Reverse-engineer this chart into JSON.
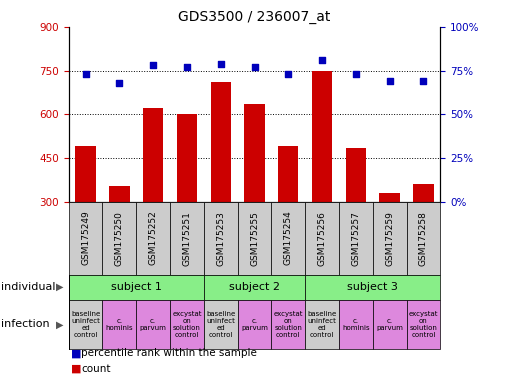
{
  "title": "GDS3500 / 236007_at",
  "samples": [
    "GSM175249",
    "GSM175250",
    "GSM175252",
    "GSM175251",
    "GSM175253",
    "GSM175255",
    "GSM175254",
    "GSM175256",
    "GSM175257",
    "GSM175259",
    "GSM175258"
  ],
  "counts": [
    490,
    355,
    620,
    600,
    710,
    635,
    490,
    750,
    485,
    330,
    360
  ],
  "percentile_ranks": [
    73,
    68,
    78,
    77,
    79,
    77,
    73,
    81,
    73,
    69,
    69
  ],
  "ylim_left": [
    300,
    900
  ],
  "ylim_right": [
    0,
    100
  ],
  "yticks_left": [
    300,
    450,
    600,
    750,
    900
  ],
  "yticks_right": [
    0,
    25,
    50,
    75,
    100
  ],
  "ytick_labels_right": [
    "0%",
    "25%",
    "50%",
    "75%",
    "100%"
  ],
  "hlines": [
    450,
    600,
    750
  ],
  "bar_color": "#cc0000",
  "dot_color": "#0000bb",
  "bar_bottom": 300,
  "subjects": [
    {
      "label": "subject 1",
      "start": 0,
      "end": 3
    },
    {
      "label": "subject 2",
      "start": 4,
      "end": 6
    },
    {
      "label": "subject 3",
      "start": 7,
      "end": 10
    }
  ],
  "infections": [
    {
      "label": "baseline\nuninfect\ned\ncontrol",
      "color": "#cccccc"
    },
    {
      "label": "c.\nhominis",
      "color": "#dd88dd"
    },
    {
      "label": "c.\nparvum",
      "color": "#dd88dd"
    },
    {
      "label": "excystat\non\nsolution\ncontrol",
      "color": "#dd88dd"
    },
    {
      "label": "baseline\nuninfect\ned\ncontrol",
      "color": "#cccccc"
    },
    {
      "label": "c.\nparvum",
      "color": "#dd88dd"
    },
    {
      "label": "excystat\non\nsolution\ncontrol",
      "color": "#dd88dd"
    },
    {
      "label": "baseline\nuninfect\ned\ncontrol",
      "color": "#cccccc"
    },
    {
      "label": "c.\nhominis",
      "color": "#dd88dd"
    },
    {
      "label": "c.\nparvum",
      "color": "#dd88dd"
    },
    {
      "label": "excystat\non\nsolution\ncontrol",
      "color": "#dd88dd"
    }
  ],
  "sample_bg_color": "#cccccc",
  "subject_color": "#88ee88",
  "tick_label_color_left": "#cc0000",
  "tick_label_color_right": "#0000bb",
  "bg_color": "#ffffff",
  "title_fontsize": 10,
  "tick_fontsize": 7.5,
  "sample_fontsize": 6.5,
  "subject_fontsize": 8,
  "infection_fontsize": 5,
  "label_fontsize": 8,
  "legend_fontsize": 7.5
}
